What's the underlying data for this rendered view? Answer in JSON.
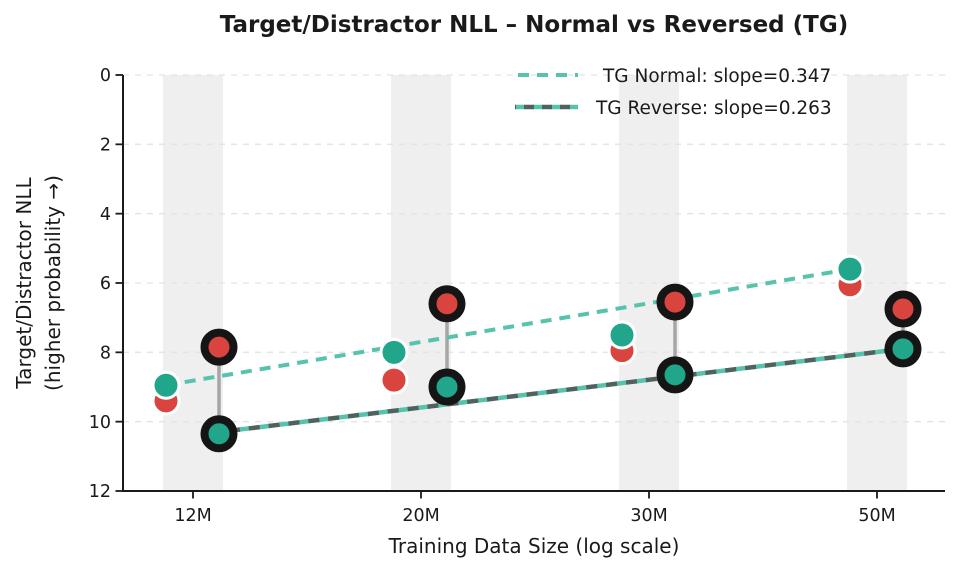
{
  "chart_data": {
    "type": "scatter",
    "title": "Target/Distractor NLL – Normal vs Reversed (TG)",
    "xlabel": "Training Data Size (log scale)",
    "ylabel_line1": "Target/Distractor NLL",
    "ylabel_line2": "(higher probability →)",
    "categories": [
      "12M",
      "20M",
      "30M",
      "50M"
    ],
    "y_ticks": [
      0,
      2,
      4,
      6,
      8,
      10,
      12
    ],
    "y_range": [
      0,
      12
    ],
    "y_axis_inverted": true,
    "grid": "horizontal dashed gridlines on; vertical gray highlight band at each x tick",
    "legend": {
      "position": "upper right, no frame",
      "entries": [
        {
          "label": "TG Normal: slope=0.347",
          "style": "teal dashed line"
        },
        {
          "label": "TG Reverse: slope=0.263",
          "style": "dark/teal two-tone dashed line"
        }
      ]
    },
    "series": [
      {
        "name": "TG Normal – teal markers",
        "group": "normal",
        "color_key": "teal_marker",
        "edge": "white",
        "values": [
          8.95,
          8.0,
          7.5,
          5.6
        ]
      },
      {
        "name": "TG Normal – red markers",
        "group": "normal",
        "color_key": "red_marker",
        "edge": "white",
        "values": [
          9.4,
          8.8,
          7.95,
          6.05
        ]
      },
      {
        "name": "TG Reverse – red markers",
        "group": "reverse",
        "color_key": "red_marker",
        "edge": "black",
        "values": [
          7.85,
          6.6,
          6.55,
          6.75
        ]
      },
      {
        "name": "TG Reverse – teal markers",
        "group": "reverse",
        "color_key": "teal_marker",
        "edge": "black",
        "values": [
          10.35,
          9.0,
          8.65,
          7.9
        ]
      }
    ],
    "trend_lines": [
      {
        "name": "TG Normal fit",
        "label": "TG Normal: slope=0.347",
        "group": "normal",
        "y_start": 8.95,
        "y_end": 5.6
      },
      {
        "name": "TG Reverse fit",
        "label": "TG Reverse: slope=0.263",
        "group": "reverse",
        "y_start": 10.3,
        "y_end": 7.9
      }
    ],
    "colors": {
      "teal_marker": "#21a58b",
      "red_marker": "#d9443f",
      "trend_normal": "#57c3ad",
      "trend_reverse_dark": "#50625e",
      "marker_edge_normal": "#ffffff",
      "marker_edge_reverse": "#151515",
      "connector": "#a6a6a6",
      "band": "#efefef",
      "grid": "#e4e4e4",
      "axis": "#1a1a1a",
      "text": "#1a1a1a"
    }
  }
}
